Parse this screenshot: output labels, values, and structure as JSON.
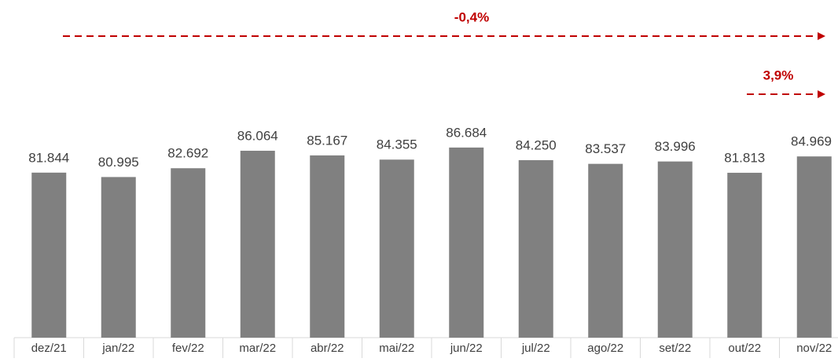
{
  "chart_data": {
    "type": "bar",
    "categories": [
      "dez/21",
      "jan/22",
      "fev/22",
      "mar/22",
      "abr/22",
      "mai/22",
      "jun/22",
      "jul/22",
      "ago/22",
      "set/22",
      "out/22",
      "nov/22"
    ],
    "values": [
      81844,
      80995,
      82692,
      86064,
      85167,
      84355,
      86684,
      84250,
      83537,
      83996,
      81813,
      84969
    ],
    "value_labels": [
      "81.844",
      "80.995",
      "82.692",
      "86.064",
      "85.167",
      "84.355",
      "86.684",
      "84.250",
      "83.537",
      "83.996",
      "81.813",
      "84.969"
    ],
    "color": "#808080",
    "ylim": [
      50000,
      100000
    ],
    "annotations": [
      "-0,4%",
      "3,9%"
    ]
  }
}
